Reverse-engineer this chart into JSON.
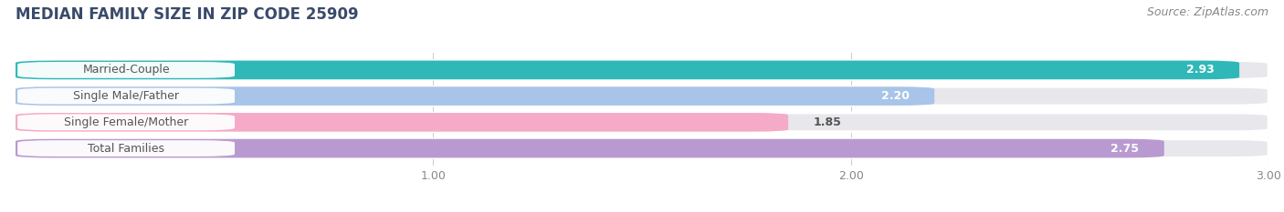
{
  "title": "MEDIAN FAMILY SIZE IN ZIP CODE 25909",
  "source": "Source: ZipAtlas.com",
  "categories": [
    "Married-Couple",
    "Single Male/Father",
    "Single Female/Mother",
    "Total Families"
  ],
  "values": [
    2.93,
    2.2,
    1.85,
    2.75
  ],
  "bar_colors": [
    "#30b8b8",
    "#a8c4e8",
    "#f5aac8",
    "#b89ad0"
  ],
  "value_inside": [
    true,
    true,
    false,
    true
  ],
  "label_colors_inside": [
    "white",
    "white",
    "#555555",
    "white"
  ],
  "xmin": 0.0,
  "xmax": 3.0,
  "xticks": [
    1.0,
    2.0,
    3.0
  ],
  "bar_height": 0.72,
  "background_color": "#ffffff",
  "bar_bg_color": "#e8e8ec",
  "title_fontsize": 12,
  "source_fontsize": 9,
  "label_fontsize": 9,
  "value_fontsize": 9
}
